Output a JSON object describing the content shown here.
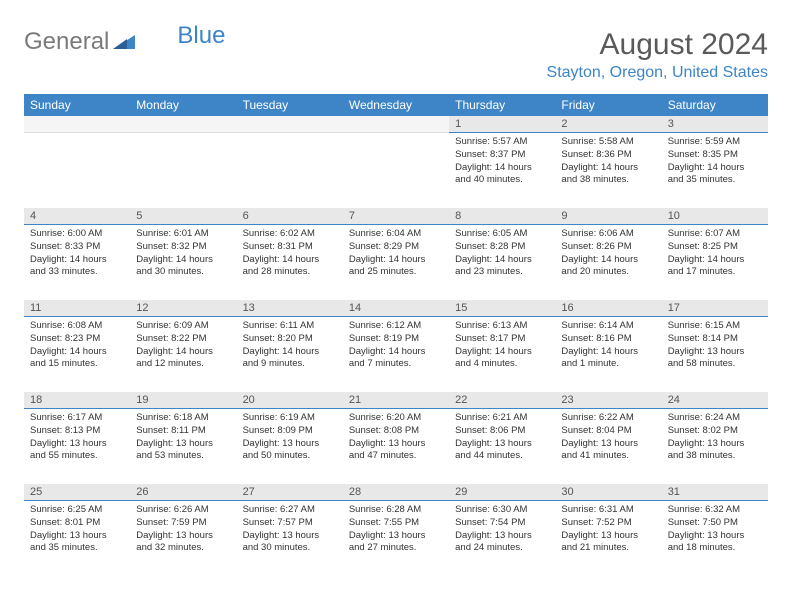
{
  "logo": {
    "text1": "General",
    "text2": "Blue"
  },
  "title": "August 2024",
  "location": "Stayton, Oregon, United States",
  "colors": {
    "brand": "#3d85c6",
    "grayText": "#7a7a7a",
    "headerBg": "#3d85c6",
    "dayNumBg": "#e8e8e8"
  },
  "weekdays": [
    "Sunday",
    "Monday",
    "Tuesday",
    "Wednesday",
    "Thursday",
    "Friday",
    "Saturday"
  ],
  "weeks": [
    [
      null,
      null,
      null,
      null,
      {
        "n": "1",
        "sr": "Sunrise: 5:57 AM",
        "ss": "Sunset: 8:37 PM",
        "dl": "Daylight: 14 hours and 40 minutes."
      },
      {
        "n": "2",
        "sr": "Sunrise: 5:58 AM",
        "ss": "Sunset: 8:36 PM",
        "dl": "Daylight: 14 hours and 38 minutes."
      },
      {
        "n": "3",
        "sr": "Sunrise: 5:59 AM",
        "ss": "Sunset: 8:35 PM",
        "dl": "Daylight: 14 hours and 35 minutes."
      }
    ],
    [
      {
        "n": "4",
        "sr": "Sunrise: 6:00 AM",
        "ss": "Sunset: 8:33 PM",
        "dl": "Daylight: 14 hours and 33 minutes."
      },
      {
        "n": "5",
        "sr": "Sunrise: 6:01 AM",
        "ss": "Sunset: 8:32 PM",
        "dl": "Daylight: 14 hours and 30 minutes."
      },
      {
        "n": "6",
        "sr": "Sunrise: 6:02 AM",
        "ss": "Sunset: 8:31 PM",
        "dl": "Daylight: 14 hours and 28 minutes."
      },
      {
        "n": "7",
        "sr": "Sunrise: 6:04 AM",
        "ss": "Sunset: 8:29 PM",
        "dl": "Daylight: 14 hours and 25 minutes."
      },
      {
        "n": "8",
        "sr": "Sunrise: 6:05 AM",
        "ss": "Sunset: 8:28 PM",
        "dl": "Daylight: 14 hours and 23 minutes."
      },
      {
        "n": "9",
        "sr": "Sunrise: 6:06 AM",
        "ss": "Sunset: 8:26 PM",
        "dl": "Daylight: 14 hours and 20 minutes."
      },
      {
        "n": "10",
        "sr": "Sunrise: 6:07 AM",
        "ss": "Sunset: 8:25 PM",
        "dl": "Daylight: 14 hours and 17 minutes."
      }
    ],
    [
      {
        "n": "11",
        "sr": "Sunrise: 6:08 AM",
        "ss": "Sunset: 8:23 PM",
        "dl": "Daylight: 14 hours and 15 minutes."
      },
      {
        "n": "12",
        "sr": "Sunrise: 6:09 AM",
        "ss": "Sunset: 8:22 PM",
        "dl": "Daylight: 14 hours and 12 minutes."
      },
      {
        "n": "13",
        "sr": "Sunrise: 6:11 AM",
        "ss": "Sunset: 8:20 PM",
        "dl": "Daylight: 14 hours and 9 minutes."
      },
      {
        "n": "14",
        "sr": "Sunrise: 6:12 AM",
        "ss": "Sunset: 8:19 PM",
        "dl": "Daylight: 14 hours and 7 minutes."
      },
      {
        "n": "15",
        "sr": "Sunrise: 6:13 AM",
        "ss": "Sunset: 8:17 PM",
        "dl": "Daylight: 14 hours and 4 minutes."
      },
      {
        "n": "16",
        "sr": "Sunrise: 6:14 AM",
        "ss": "Sunset: 8:16 PM",
        "dl": "Daylight: 14 hours and 1 minute."
      },
      {
        "n": "17",
        "sr": "Sunrise: 6:15 AM",
        "ss": "Sunset: 8:14 PM",
        "dl": "Daylight: 13 hours and 58 minutes."
      }
    ],
    [
      {
        "n": "18",
        "sr": "Sunrise: 6:17 AM",
        "ss": "Sunset: 8:13 PM",
        "dl": "Daylight: 13 hours and 55 minutes."
      },
      {
        "n": "19",
        "sr": "Sunrise: 6:18 AM",
        "ss": "Sunset: 8:11 PM",
        "dl": "Daylight: 13 hours and 53 minutes."
      },
      {
        "n": "20",
        "sr": "Sunrise: 6:19 AM",
        "ss": "Sunset: 8:09 PM",
        "dl": "Daylight: 13 hours and 50 minutes."
      },
      {
        "n": "21",
        "sr": "Sunrise: 6:20 AM",
        "ss": "Sunset: 8:08 PM",
        "dl": "Daylight: 13 hours and 47 minutes."
      },
      {
        "n": "22",
        "sr": "Sunrise: 6:21 AM",
        "ss": "Sunset: 8:06 PM",
        "dl": "Daylight: 13 hours and 44 minutes."
      },
      {
        "n": "23",
        "sr": "Sunrise: 6:22 AM",
        "ss": "Sunset: 8:04 PM",
        "dl": "Daylight: 13 hours and 41 minutes."
      },
      {
        "n": "24",
        "sr": "Sunrise: 6:24 AM",
        "ss": "Sunset: 8:02 PM",
        "dl": "Daylight: 13 hours and 38 minutes."
      }
    ],
    [
      {
        "n": "25",
        "sr": "Sunrise: 6:25 AM",
        "ss": "Sunset: 8:01 PM",
        "dl": "Daylight: 13 hours and 35 minutes."
      },
      {
        "n": "26",
        "sr": "Sunrise: 6:26 AM",
        "ss": "Sunset: 7:59 PM",
        "dl": "Daylight: 13 hours and 32 minutes."
      },
      {
        "n": "27",
        "sr": "Sunrise: 6:27 AM",
        "ss": "Sunset: 7:57 PM",
        "dl": "Daylight: 13 hours and 30 minutes."
      },
      {
        "n": "28",
        "sr": "Sunrise: 6:28 AM",
        "ss": "Sunset: 7:55 PM",
        "dl": "Daylight: 13 hours and 27 minutes."
      },
      {
        "n": "29",
        "sr": "Sunrise: 6:30 AM",
        "ss": "Sunset: 7:54 PM",
        "dl": "Daylight: 13 hours and 24 minutes."
      },
      {
        "n": "30",
        "sr": "Sunrise: 6:31 AM",
        "ss": "Sunset: 7:52 PM",
        "dl": "Daylight: 13 hours and 21 minutes."
      },
      {
        "n": "31",
        "sr": "Sunrise: 6:32 AM",
        "ss": "Sunset: 7:50 PM",
        "dl": "Daylight: 13 hours and 18 minutes."
      }
    ]
  ]
}
